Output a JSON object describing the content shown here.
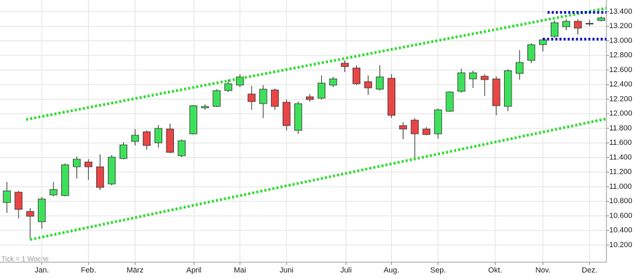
{
  "chart_data": {
    "type": "candlestick",
    "annotation": "Tick = 1 Woche",
    "x": [
      0,
      1,
      2,
      3,
      4,
      5,
      6,
      7,
      8,
      9,
      10,
      11,
      12,
      13,
      14,
      15,
      16,
      17,
      18,
      19,
      20,
      21,
      22,
      23,
      24,
      25,
      26,
      27,
      28,
      29,
      30,
      31,
      32,
      33,
      34,
      35,
      36,
      37,
      38,
      39,
      40,
      41,
      42,
      43,
      44,
      45,
      46,
      47,
      48,
      49,
      50,
      51
    ],
    "open": [
      10783,
      10925,
      10661,
      10520,
      10887,
      10878,
      11273,
      11339,
      11273,
      11038,
      11386,
      11621,
      11753,
      11602,
      11791,
      11424,
      11725,
      12082,
      12101,
      12318,
      12393,
      12271,
      12139,
      12327,
      12158,
      11772,
      12233,
      12214,
      12393,
      12694,
      12628,
      12440,
      12337,
      12487,
      11838,
      11913,
      11791,
      11725,
      12035,
      12308,
      12478,
      12515,
      12478,
      12101,
      12553,
      12732,
      12948,
      13061,
      13193,
      13268,
      13240,
      13278
    ],
    "high": [
      11066,
      10943,
      10708,
      10859,
      11066,
      11320,
      11414,
      11377,
      11443,
      11433,
      11612,
      11791,
      11772,
      11847,
      11866,
      11649,
      12120,
      12130,
      12337,
      12468,
      12544,
      12384,
      12393,
      12346,
      12195,
      12167,
      12271,
      12525,
      12506,
      12732,
      12666,
      12525,
      12666,
      12544,
      11885,
      11941,
      11819,
      12073,
      12308,
      12619,
      12591,
      12544,
      12515,
      12609,
      12873,
      12967,
      13042,
      13278,
      13296,
      13296,
      13287,
      13334
    ],
    "low": [
      10642,
      10567,
      10275,
      10426,
      10868,
      10868,
      11113,
      11094,
      10953,
      11019,
      11377,
      11565,
      11508,
      11537,
      11461,
      11405,
      11715,
      12054,
      12092,
      12299,
      12365,
      12054,
      11941,
      12054,
      11772,
      11725,
      12167,
      12195,
      12365,
      12572,
      12393,
      12261,
      12318,
      11941,
      11649,
      11395,
      11706,
      11659,
      12026,
      12289,
      12355,
      12242,
      11979,
      12035,
      12468,
      12694,
      12854,
      13042,
      13146,
      13089,
      13202,
      13268
    ],
    "close": [
      10943,
      10689,
      10595,
      10831,
      10962,
      11301,
      11377,
      11273,
      10991,
      11405,
      11574,
      11706,
      11565,
      11800,
      11471,
      11631,
      12111,
      12101,
      12318,
      12412,
      12506,
      12167,
      12337,
      12101,
      11838,
      12139,
      12195,
      12421,
      12478,
      12647,
      12412,
      12355,
      12506,
      11979,
      11791,
      11725,
      11715,
      12054,
      12299,
      12562,
      12562,
      12468,
      12111,
      12591,
      12704,
      12948,
      13014,
      13249,
      13268,
      13174,
      13240,
      13315
    ],
    "up_color": "#3de05a",
    "down_color": "#e84545",
    "flat_color": "#333333",
    "xlim": [
      -0.59,
      51.45
    ],
    "ylim": [
      9965,
      13560
    ],
    "xticks": [
      {
        "value": 3.0,
        "label": "Jan."
      },
      {
        "value": 7.0,
        "label": "Feb."
      },
      {
        "value": 11.0,
        "label": "März"
      },
      {
        "value": 16.05,
        "label": "April"
      },
      {
        "value": 20.0,
        "label": "Mai"
      },
      {
        "value": 24.0,
        "label": "Juni"
      },
      {
        "value": 29.1,
        "label": "Juli"
      },
      {
        "value": 33.0,
        "label": "Aug."
      },
      {
        "value": 37.0,
        "label": "Sep."
      },
      {
        "value": 41.9,
        "label": "Okt."
      },
      {
        "value": 46.0,
        "label": "Nov."
      },
      {
        "value": 50.0,
        "label": "Dez."
      }
    ],
    "yticks": [
      {
        "value": 10200,
        "label": "10.200"
      },
      {
        "value": 10400,
        "label": "10.400"
      },
      {
        "value": 10600,
        "label": "10.600"
      },
      {
        "value": 10800,
        "label": "10.800"
      },
      {
        "value": 11000,
        "label": "11.000"
      },
      {
        "value": 11200,
        "label": "11.200"
      },
      {
        "value": 11400,
        "label": "11.400"
      },
      {
        "value": 11600,
        "label": "11.600"
      },
      {
        "value": 11800,
        "label": "11.800"
      },
      {
        "value": 12000,
        "label": "12.000"
      },
      {
        "value": 12200,
        "label": "12.200"
      },
      {
        "value": 12400,
        "label": "12.400"
      },
      {
        "value": 12600,
        "label": "12.600"
      },
      {
        "value": 12800,
        "label": "12.800"
      },
      {
        "value": 13000,
        "label": "13.000"
      },
      {
        "value": 13200,
        "label": "13.200"
      },
      {
        "value": 13400,
        "label": "13.400"
      }
    ],
    "grid": true,
    "lines": [
      {
        "color": "#33dd33",
        "x": [
          1.65,
          51.45
        ],
        "y": [
          11922,
          13447
        ]
      },
      {
        "color": "#33dd33",
        "x": [
          2.0,
          51.45
        ],
        "y": [
          10275,
          11932
        ]
      },
      {
        "color": "#1a1acc",
        "x": [
          46.4,
          51.45
        ],
        "y": [
          13391,
          13391
        ]
      },
      {
        "color": "#1a1acc",
        "x": [
          46.0,
          51.45
        ],
        "y": [
          13024,
          13024
        ]
      }
    ]
  }
}
